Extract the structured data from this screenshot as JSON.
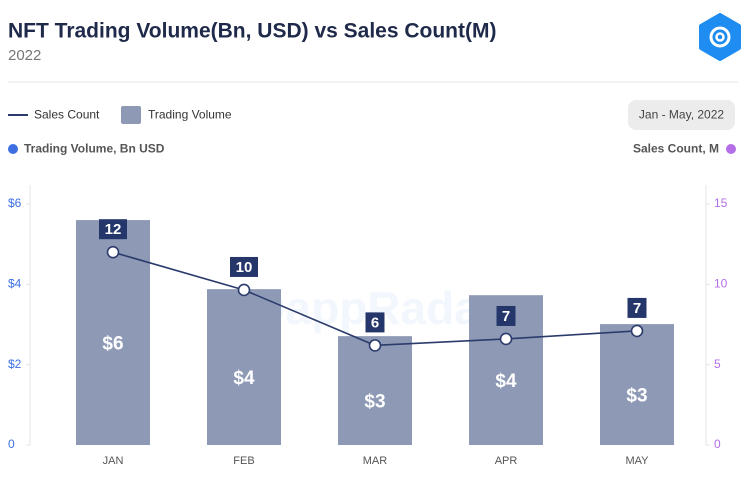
{
  "chart_data": {
    "type": "bar",
    "title": "NFT Trading Volume(Bn, USD) vs Sales Count(M)",
    "subtitle": "2022",
    "date_range": "Jan - May, 2022",
    "watermark": "DappRadar",
    "ylabel": "Trading Volume, Bn USD",
    "y2label": "Sales Count, M",
    "categories": [
      "JAN",
      "FEB",
      "MAR",
      "APR",
      "MAY"
    ],
    "series": [
      {
        "name": "Sales Count",
        "type": "line",
        "axis": "y2",
        "color": "#2b3b6c",
        "values": [
          12,
          9.65,
          6.2,
          6.6,
          7.1
        ],
        "value_labels": [
          "12",
          "10",
          "6",
          "7",
          "7"
        ]
      },
      {
        "name": "Trading Volume",
        "type": "bar",
        "color": "#8e9ab5",
        "values": [
          5.6,
          3.88,
          2.71,
          3.73,
          3.01
        ],
        "value_labels": [
          "$6",
          "$4",
          "$3",
          "$4",
          "$3"
        ]
      }
    ],
    "ylim": [
      0,
      6
    ],
    "yticks": [
      0,
      {
        "value": 2,
        "label": "$2"
      },
      {
        "value": 4,
        "label": "$4"
      },
      {
        "value": 6,
        "label": "$6"
      }
    ],
    "y2lim": [
      0,
      15
    ],
    "y2ticks": [
      0,
      5,
      10,
      15
    ],
    "ytick_color": "#3d6fe3",
    "y2tick_color": "#b36ee8"
  }
}
